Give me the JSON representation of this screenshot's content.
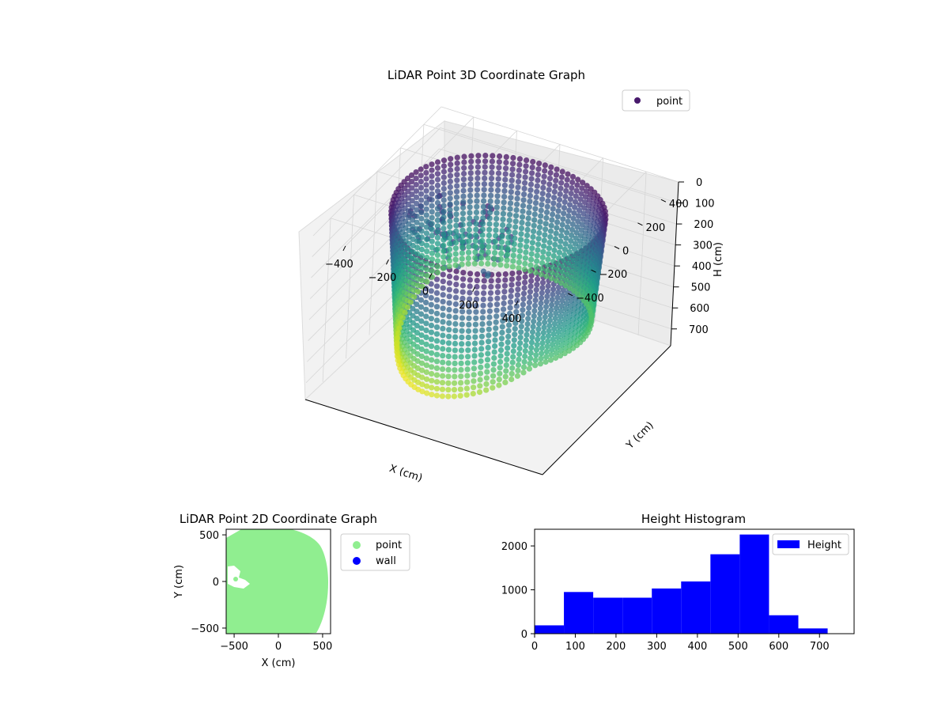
{
  "chart_data": [
    {
      "type": "scatter",
      "projection": "3d",
      "title": "LiDAR Point 3D Coordinate Graph",
      "xlabel": "X (cm)",
      "ylabel": "Y (cm)",
      "zlabel": "H (cm)",
      "x_ticks": [
        -400,
        -200,
        0,
        200,
        400
      ],
      "y_ticks": [
        -400,
        -200,
        0,
        200,
        400
      ],
      "z_ticks": [
        0,
        100,
        200,
        300,
        400,
        500,
        600,
        700
      ],
      "xlim": [
        -550,
        550
      ],
      "ylim": [
        -550,
        550
      ],
      "zlim": [
        0,
        780
      ],
      "z_inverted": true,
      "colormap": "viridis",
      "marker_color": "#481a6c",
      "legend": {
        "entries": [
          "point"
        ],
        "position": "top-right"
      },
      "grid": true
    },
    {
      "type": "scatter",
      "title": "LiDAR Point 2D Coordinate Graph",
      "xlabel": "X (cm)",
      "ylabel": "Y (cm)",
      "x_ticks": [
        -500,
        0,
        500
      ],
      "y_ticks": [
        -500,
        0,
        500
      ],
      "xlim": [
        -590,
        590
      ],
      "ylim": [
        -560,
        560
      ],
      "series": [
        {
          "name": "point",
          "color": "#90ee90"
        },
        {
          "name": "wall",
          "color": "#0000ff"
        }
      ],
      "legend": {
        "position": "right-outside"
      },
      "grid": false
    },
    {
      "type": "bar",
      "title": "Height Histogram",
      "series": [
        {
          "name": "Height",
          "color": "#0000ff",
          "bin_edges": [
            0,
            72,
            144,
            216,
            288,
            360,
            432,
            504,
            576,
            648,
            720
          ],
          "counts": [
            190,
            950,
            820,
            820,
            1030,
            1190,
            1810,
            2260,
            420,
            120
          ]
        }
      ],
      "x_ticks": [
        0,
        100,
        200,
        300,
        400,
        500,
        600,
        700
      ],
      "y_ticks": [
        0,
        1000,
        2000
      ],
      "xlim": [
        0,
        785
      ],
      "ylim": [
        0,
        2380
      ],
      "legend": {
        "position": "top-right"
      },
      "grid": false
    }
  ]
}
